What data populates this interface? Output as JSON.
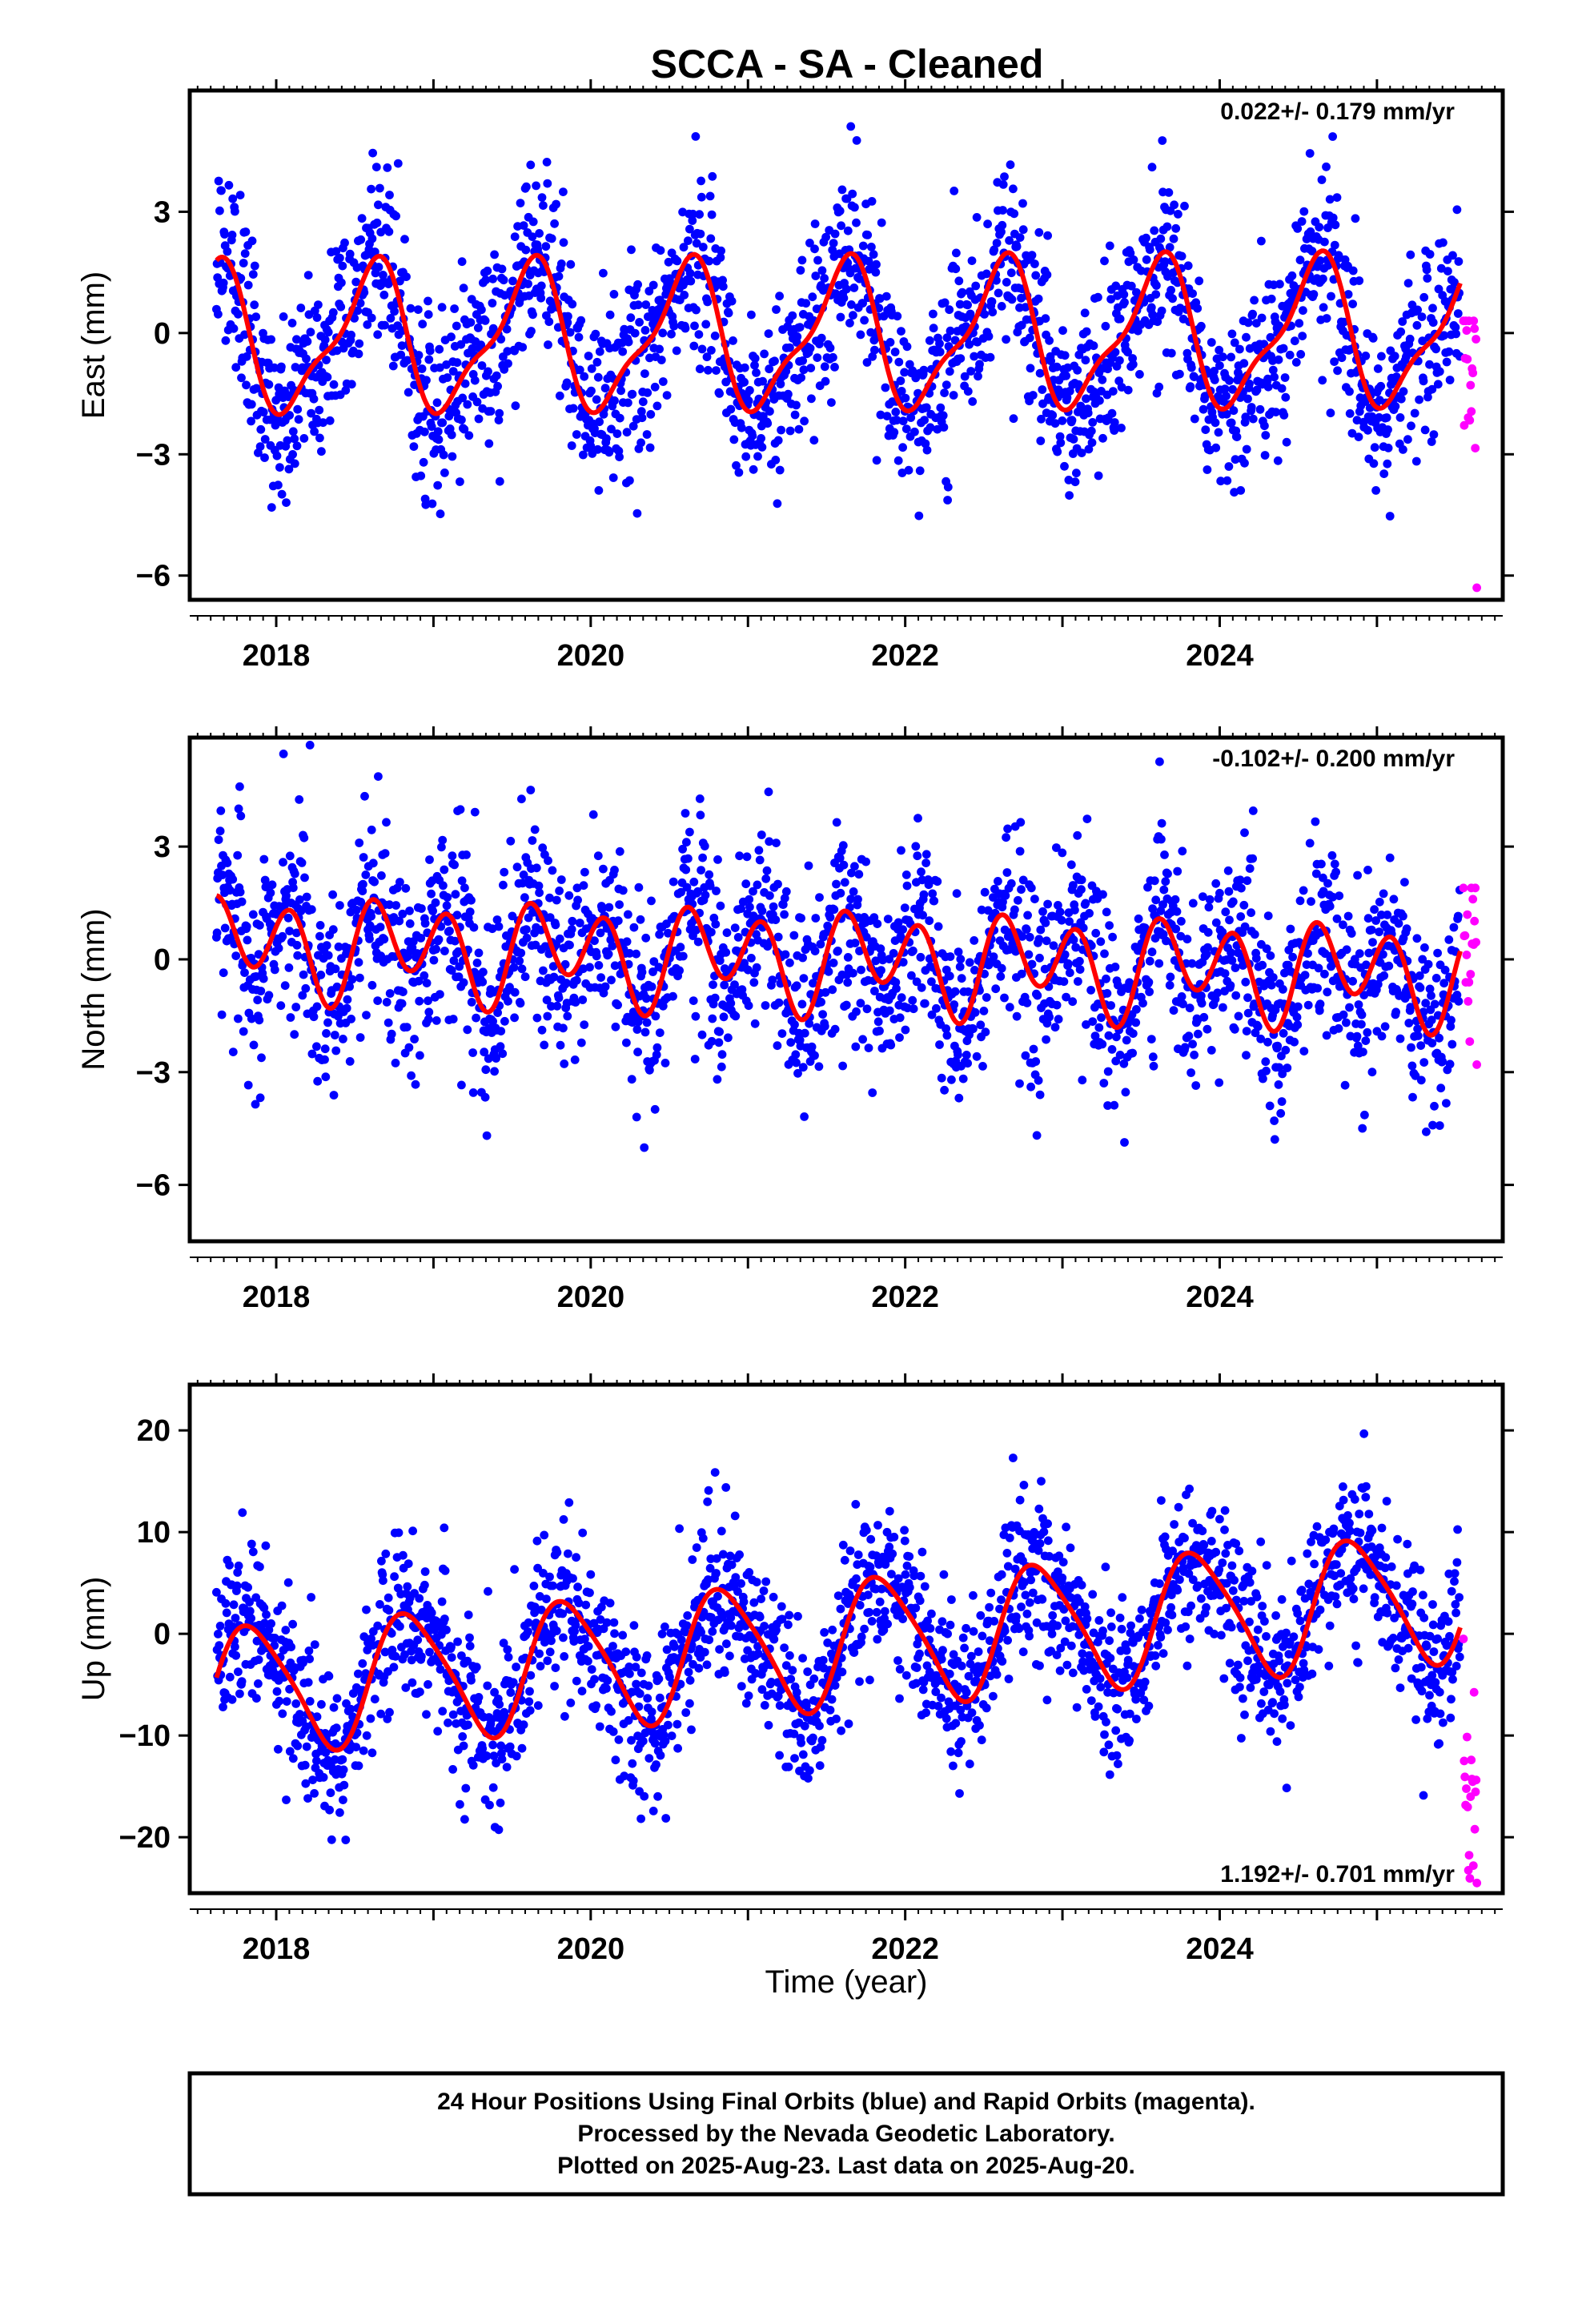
{
  "chart_data": {
    "type": "scatter",
    "title": "SCCA  - SA - Cleaned",
    "xlabel": "Time (year)",
    "xlim": [
      2017.45,
      2025.8
    ],
    "x_ticks": [
      "2018",
      "2020",
      "2022",
      "2024"
    ],
    "series_colors": {
      "final": "#0000ff",
      "rapid": "#ff00ff",
      "model": "#ff0000"
    },
    "panels": [
      {
        "name": "east",
        "ylabel": "East (mm)",
        "ylim": [
          -6.6,
          6.0
        ],
        "y_ticks": [
          "3",
          "0",
          "−3",
          "−6"
        ],
        "rate": "0.022+/- 0.179 mm/yr",
        "rate_position": "top-right",
        "model": {
          "offset": -0.1,
          "trend": 0.022,
          "annual": 1.7,
          "annual_peak": 0.6,
          "semiannual": 0.55,
          "semiannual_peak": 0.2
        },
        "noise": {
          "sd": 1.05,
          "outlier_rate": 0.03,
          "extreme": [
            -5.9,
            5.5
          ]
        },
        "rapid": {
          "center": -1.0,
          "spread": 1.4,
          "min": -6.3,
          "max": 0.3,
          "count": 18
        }
      },
      {
        "name": "north",
        "ylabel": "North (mm)",
        "ylim": [
          -7.5,
          5.9
        ],
        "y_ticks": [
          "3",
          "0",
          "−3",
          "−6"
        ],
        "rate": "-0.102+/- 0.200 mm/yr",
        "rate_position": "top-right",
        "model": {
          "offset": 0.0,
          "trend": -0.102,
          "annual": 0.55,
          "annual_peak": 0.8,
          "semiannual": 1.1,
          "semiannual_peak": 0.1
        },
        "noise": {
          "sd": 1.2,
          "outlier_rate": 0.03,
          "extreme": [
            -7.2,
            5.7
          ]
        },
        "rapid": {
          "center": 0.2,
          "spread": 1.3,
          "min": -2.8,
          "max": 1.9,
          "count": 18
        }
      },
      {
        "name": "up",
        "ylabel": "Up (mm)",
        "ylim": [
          -25.5,
          24.5
        ],
        "y_ticks": [
          "20",
          "10",
          "0",
          "−10",
          "−20"
        ],
        "rate": "1.192+/- 0.701 mm/yr",
        "rate_position": "bottom-right",
        "model": {
          "offset": -1.0,
          "trend": 1.192,
          "annual": 6.2,
          "annual_peak": 0.85,
          "semiannual": 1.0,
          "semiannual_peak": 0.2
        },
        "noise": {
          "sd": 3.6,
          "outlier_rate": 0.03,
          "extreme": [
            -20.5,
            23.0
          ]
        },
        "rapid": {
          "center": -15.0,
          "spread": 6.0,
          "min": -24.5,
          "max": -0.5,
          "count": 20
        }
      }
    ],
    "final_orbit_range": [
      2017.62,
      2025.53
    ],
    "rapid_orbit_range": [
      2025.54,
      2025.63
    ],
    "point_count_per_panel": 2300
  },
  "caption": {
    "line1": "24 Hour Positions Using Final Orbits (blue) and Rapid Orbits (magenta).",
    "line2": "Processed by the Nevada Geodetic Laboratory.",
    "line3": "Plotted on 2025-Aug-23. Last data on 2025-Aug-20."
  }
}
